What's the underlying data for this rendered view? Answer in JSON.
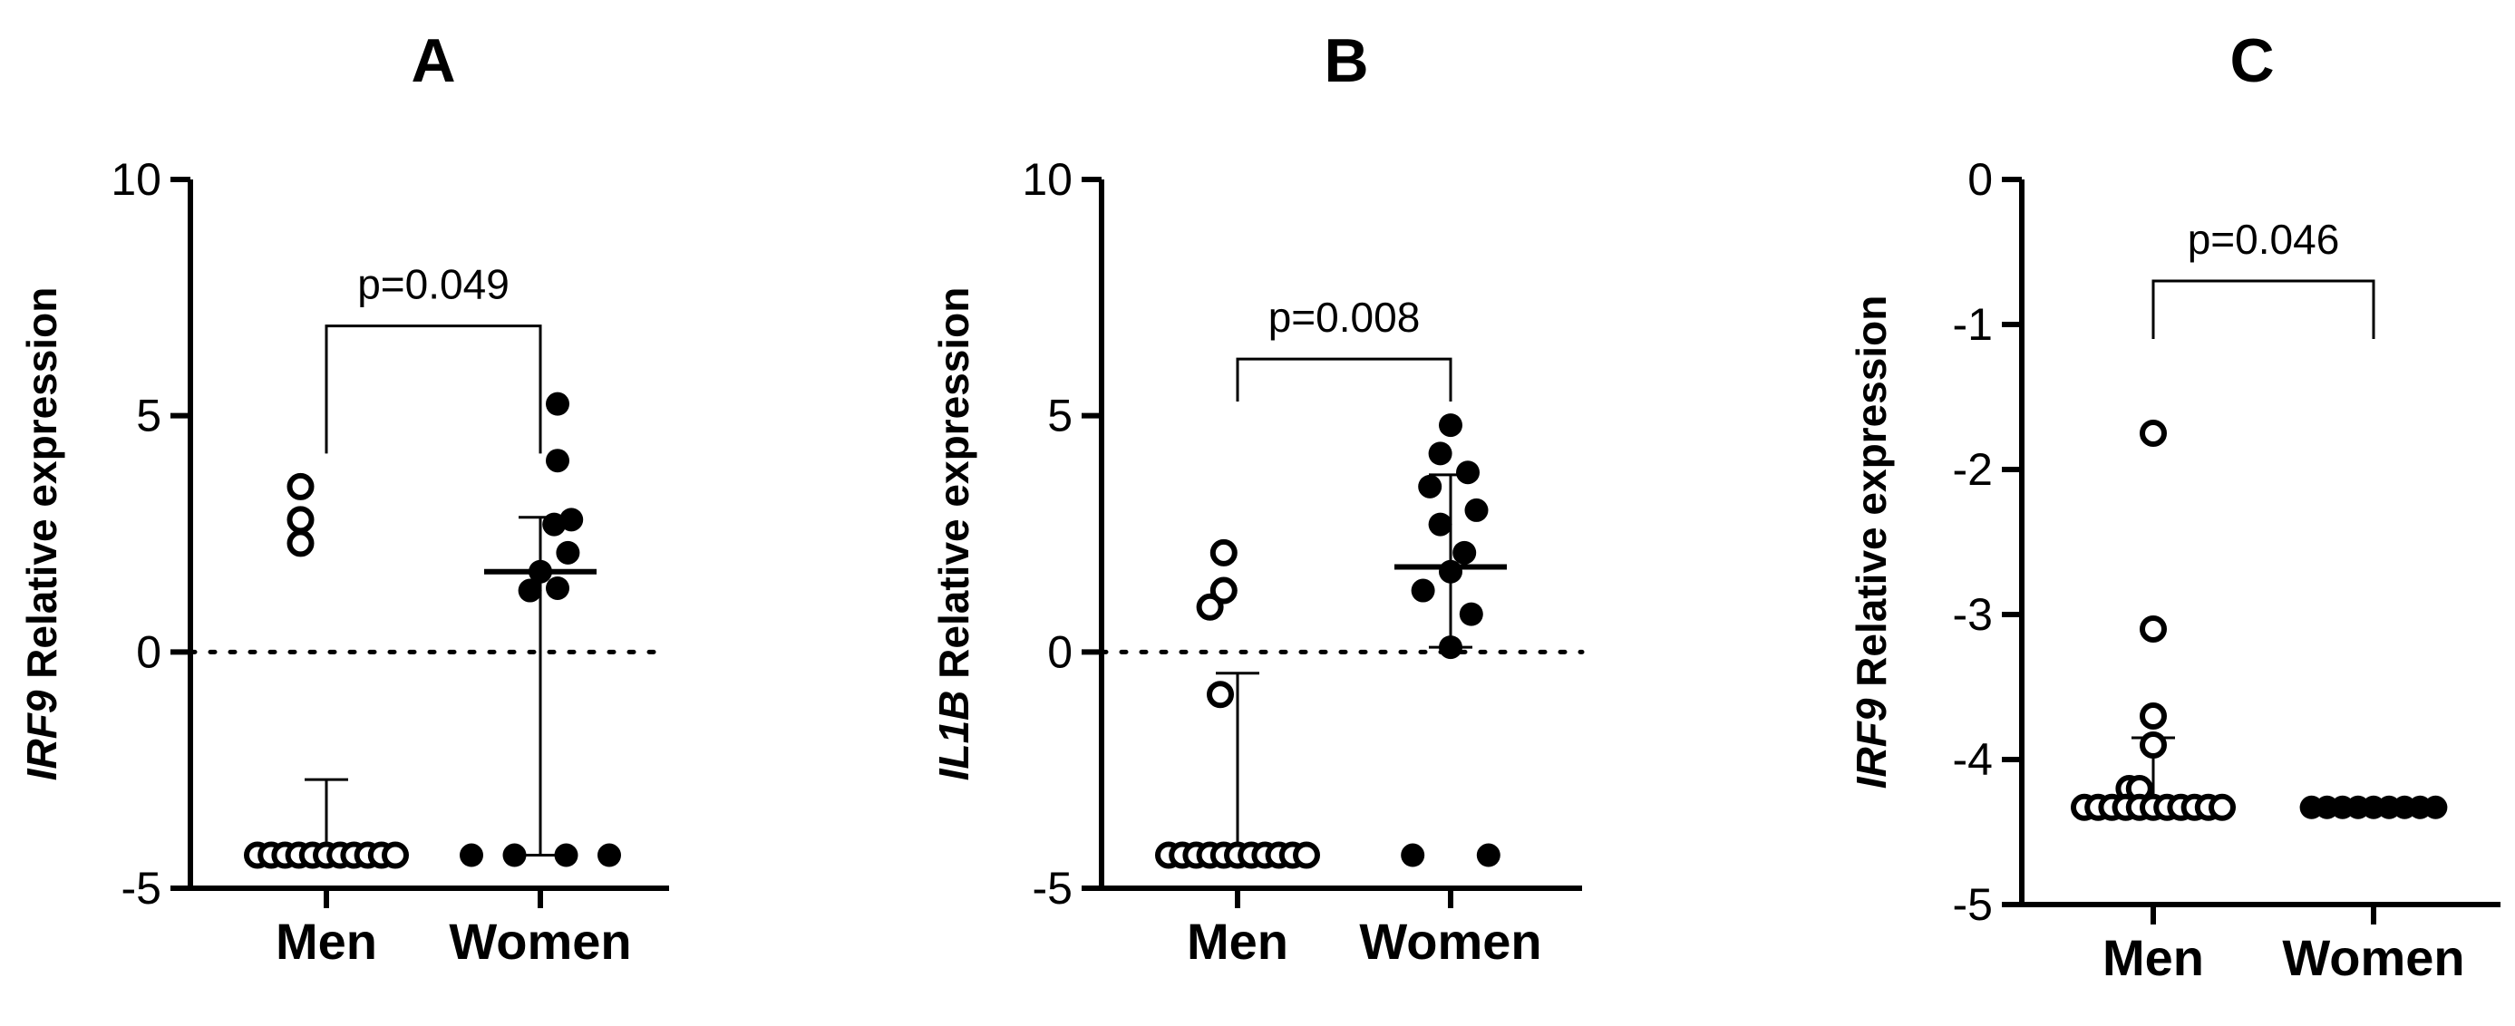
{
  "chart_data": [
    {
      "type": "scatter",
      "panel_label": "A",
      "ylabel_gene": "IRF9",
      "ylabel_rest": " Relative expression",
      "ylim": [
        -5,
        10
      ],
      "yticks": [
        -5,
        0,
        5,
        10
      ],
      "ytick_labels": [
        "-5",
        "0",
        "5",
        "10"
      ],
      "reference_line": 0,
      "categories": [
        "Men",
        "Women"
      ],
      "comparison": {
        "label": "p=0.049",
        "y": 6.9,
        "drop_to": 4.2
      },
      "series": [
        {
          "marker": "open",
          "points": [
            {
              "x": -0.15,
              "y": 3.5
            },
            {
              "x": -0.15,
              "y": 2.8
            },
            {
              "x": -0.15,
              "y": 2.3
            },
            {
              "x": -0.4,
              "y": -4.3
            },
            {
              "x": -0.32,
              "y": -4.3
            },
            {
              "x": -0.24,
              "y": -4.3
            },
            {
              "x": -0.16,
              "y": -4.3
            },
            {
              "x": -0.08,
              "y": -4.3
            },
            {
              "x": 0.0,
              "y": -4.3
            },
            {
              "x": 0.08,
              "y": -4.3
            },
            {
              "x": 0.16,
              "y": -4.3
            },
            {
              "x": 0.24,
              "y": -4.3
            },
            {
              "x": 0.32,
              "y": -4.3
            },
            {
              "x": 0.4,
              "y": -4.3
            }
          ],
          "median": -4.3,
          "iqr": [
            -4.3,
            -2.7
          ]
        },
        {
          "marker": "filled",
          "points": [
            {
              "x": 0.1,
              "y": 5.25
            },
            {
              "x": 0.1,
              "y": 4.05
            },
            {
              "x": 0.18,
              "y": 2.8
            },
            {
              "x": 0.08,
              "y": 2.7
            },
            {
              "x": 0.16,
              "y": 2.1
            },
            {
              "x": 0.0,
              "y": 1.7
            },
            {
              "x": -0.06,
              "y": 1.3
            },
            {
              "x": 0.1,
              "y": 1.35
            },
            {
              "x": -0.4,
              "y": -4.3
            },
            {
              "x": -0.15,
              "y": -4.3
            },
            {
              "x": 0.15,
              "y": -4.3
            },
            {
              "x": 0.4,
              "y": -4.3
            }
          ],
          "median": 1.7,
          "iqr": [
            -4.3,
            2.85
          ]
        }
      ]
    },
    {
      "type": "scatter",
      "panel_label": "B",
      "ylabel_gene": "IL1B",
      "ylabel_rest": " Relative expression",
      "ylim": [
        -5,
        10
      ],
      "yticks": [
        -5,
        0,
        5,
        10
      ],
      "ytick_labels": [
        "-5",
        "0",
        "5",
        "10"
      ],
      "reference_line": 0,
      "categories": [
        "Men",
        "Women"
      ],
      "comparison": {
        "label": "p=0.008",
        "y": 6.2,
        "drop_to": 5.3
      },
      "series": [
        {
          "marker": "open",
          "points": [
            {
              "x": -0.08,
              "y": 2.1
            },
            {
              "x": -0.08,
              "y": 1.3
            },
            {
              "x": -0.16,
              "y": 0.95
            },
            {
              "x": -0.1,
              "y": -0.9
            },
            {
              "x": -0.4,
              "y": -4.3
            },
            {
              "x": -0.32,
              "y": -4.3
            },
            {
              "x": -0.24,
              "y": -4.3
            },
            {
              "x": -0.16,
              "y": -4.3
            },
            {
              "x": -0.08,
              "y": -4.3
            },
            {
              "x": 0.0,
              "y": -4.3
            },
            {
              "x": 0.08,
              "y": -4.3
            },
            {
              "x": 0.16,
              "y": -4.3
            },
            {
              "x": 0.24,
              "y": -4.3
            },
            {
              "x": 0.32,
              "y": -4.3
            },
            {
              "x": 0.4,
              "y": -4.3
            }
          ],
          "median": -4.3,
          "iqr": [
            -4.3,
            -0.45
          ]
        },
        {
          "marker": "filled",
          "points": [
            {
              "x": 0.0,
              "y": 4.8
            },
            {
              "x": -0.06,
              "y": 4.2
            },
            {
              "x": 0.1,
              "y": 3.8
            },
            {
              "x": -0.12,
              "y": 3.5
            },
            {
              "x": 0.15,
              "y": 3.0
            },
            {
              "x": -0.06,
              "y": 2.7
            },
            {
              "x": 0.08,
              "y": 2.1
            },
            {
              "x": 0.0,
              "y": 1.7
            },
            {
              "x": -0.16,
              "y": 1.3
            },
            {
              "x": 0.12,
              "y": 0.8
            },
            {
              "x": 0.0,
              "y": 0.1
            },
            {
              "x": -0.22,
              "y": -4.3
            },
            {
              "x": 0.22,
              "y": -4.3
            }
          ],
          "median": 1.8,
          "iqr": [
            0.1,
            3.75
          ]
        }
      ]
    },
    {
      "type": "scatter",
      "panel_label": "C",
      "ylabel_gene": "IRF9",
      "ylabel_rest": " Relative expression",
      "ylim": [
        -5,
        0
      ],
      "yticks": [
        -5,
        -4,
        -3,
        -2,
        -1,
        0
      ],
      "ytick_labels": [
        "-5",
        "-4",
        "-3",
        "-2",
        "-1",
        "0"
      ],
      "reference_line": null,
      "categories": [
        "Men",
        "Women"
      ],
      "comparison": {
        "label": "p=0.046",
        "y": -0.7,
        "drop_to": -1.1
      },
      "series": [
        {
          "marker": "open",
          "points": [
            {
              "x": 0.0,
              "y": -1.75
            },
            {
              "x": 0.0,
              "y": -3.1
            },
            {
              "x": 0.0,
              "y": -3.7
            },
            {
              "x": 0.0,
              "y": -3.9
            },
            {
              "x": -0.14,
              "y": -4.2
            },
            {
              "x": -0.08,
              "y": -4.2
            },
            {
              "x": -0.4,
              "y": -4.33
            },
            {
              "x": -0.32,
              "y": -4.33
            },
            {
              "x": -0.24,
              "y": -4.33
            },
            {
              "x": -0.16,
              "y": -4.33
            },
            {
              "x": -0.08,
              "y": -4.33
            },
            {
              "x": 0.0,
              "y": -4.33
            },
            {
              "x": 0.08,
              "y": -4.33
            },
            {
              "x": 0.16,
              "y": -4.33
            },
            {
              "x": 0.24,
              "y": -4.33
            },
            {
              "x": 0.32,
              "y": -4.33
            },
            {
              "x": 0.4,
              "y": -4.33
            }
          ],
          "median": -4.33,
          "iqr": [
            -4.33,
            -3.85
          ]
        },
        {
          "marker": "filled",
          "points": [
            {
              "x": -0.36,
              "y": -4.33
            },
            {
              "x": -0.27,
              "y": -4.33
            },
            {
              "x": -0.18,
              "y": -4.33
            },
            {
              "x": -0.09,
              "y": -4.33
            },
            {
              "x": 0.0,
              "y": -4.33
            },
            {
              "x": 0.09,
              "y": -4.33
            },
            {
              "x": 0.18,
              "y": -4.33
            },
            {
              "x": 0.27,
              "y": -4.33
            },
            {
              "x": 0.36,
              "y": -4.33
            }
          ],
          "median": -4.33,
          "iqr": [
            -4.33,
            -4.33
          ]
        }
      ]
    }
  ]
}
